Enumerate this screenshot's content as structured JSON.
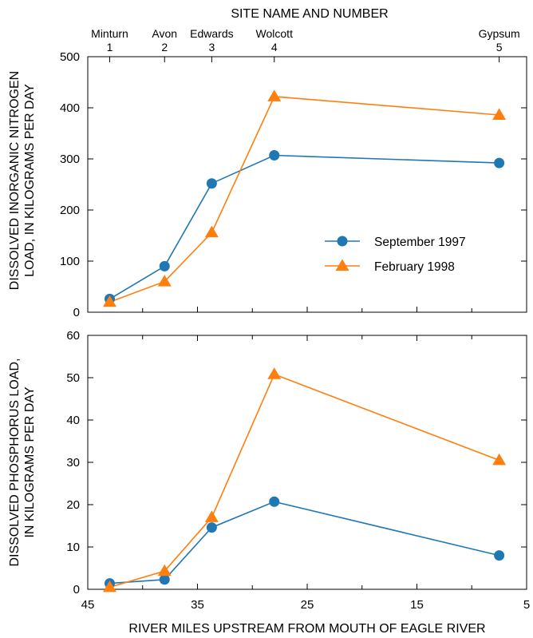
{
  "top_axis": {
    "title": "SITE NAME AND NUMBER",
    "sites": [
      {
        "name": "Minturn",
        "number": "1",
        "river_mile": 43
      },
      {
        "name": "Avon",
        "number": "2",
        "river_mile": 38
      },
      {
        "name": "Edwards",
        "number": "3",
        "river_mile": 33.7
      },
      {
        "name": "Wolcott",
        "number": "4",
        "river_mile": 28
      },
      {
        "name": "Gypsum",
        "number": "5",
        "river_mile": 7.5
      }
    ]
  },
  "colors": {
    "september": "#1f77b4",
    "february": "#ff7f0e"
  },
  "chart_data": [
    {
      "type": "line",
      "ylabel": "DISSOLVED INORGANIC NITROGEN LOAD, IN KILOGRAMS PER DAY",
      "ylabel_lines": [
        "DISSOLVED INORGANIC NITROGEN",
        "LOAD, IN KILOGRAMS PER DAY"
      ],
      "xlabel": "",
      "xlim": [
        45,
        5
      ],
      "ylim": [
        0,
        500
      ],
      "yticks": [
        0,
        100,
        200,
        300,
        400,
        500
      ],
      "legend_position": "center-right",
      "series": [
        {
          "name": "September 1997",
          "marker": "circle",
          "x": [
            43,
            38,
            33.7,
            28,
            7.5
          ],
          "values": [
            26,
            90,
            252,
            307,
            292
          ]
        },
        {
          "name": "February 1998",
          "marker": "triangle",
          "x": [
            43,
            38,
            33.7,
            28,
            7.5
          ],
          "values": [
            20,
            60,
            156,
            422,
            386
          ]
        }
      ]
    },
    {
      "type": "line",
      "ylabel": "DISSOLVED PHOSPHORUS LOAD, IN KILOGRAMS PER DAY",
      "ylabel_lines": [
        "DISSOLVED PHOSPHORUS LOAD,",
        "IN KILOGRAMS PER DAY"
      ],
      "xlabel": "RIVER MILES UPSTREAM FROM MOUTH OF EAGLE RIVER",
      "xlim": [
        45,
        5
      ],
      "xticks": [
        45,
        35,
        25,
        15,
        5
      ],
      "ylim": [
        0,
        60
      ],
      "yticks": [
        0,
        10,
        20,
        30,
        40,
        50,
        60
      ],
      "series": [
        {
          "name": "September 1997",
          "marker": "circle",
          "x": [
            43,
            38,
            33.7,
            28,
            7.5
          ],
          "values": [
            1.4,
            2.3,
            14.6,
            20.7,
            8
          ]
        },
        {
          "name": "February 1998",
          "marker": "triangle",
          "x": [
            43,
            38,
            33.7,
            28,
            7.5
          ],
          "values": [
            0.5,
            4.3,
            17,
            50.8,
            30.5
          ]
        }
      ]
    }
  ]
}
